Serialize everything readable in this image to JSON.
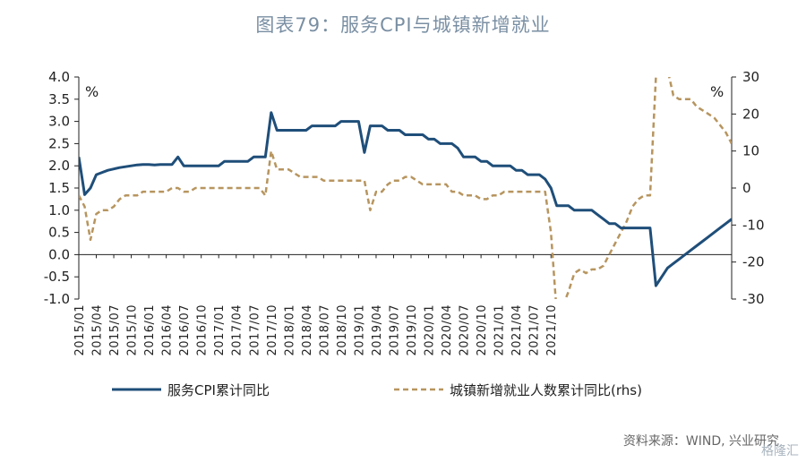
{
  "title": "图表79：服务CPI与城镇新增就业",
  "source": "资料来源：WIND, 兴业研究",
  "watermark": "格隆汇",
  "chart_data": {
    "type": "line",
    "left_unit": "%",
    "right_unit": "%",
    "ylim_left": [
      -1.0,
      4.0
    ],
    "yticks_left": [
      "4.0",
      "3.5",
      "3.0",
      "2.5",
      "2.0",
      "1.5",
      "1.0",
      "0.5",
      "0.0",
      "-0.5",
      "-1.0"
    ],
    "ylim_right": [
      -30,
      30
    ],
    "yticks_right": [
      "30",
      "20",
      "10",
      "0",
      "-10",
      "-20",
      "-30"
    ],
    "x_tick_labels": [
      "2015/01",
      "2015/04",
      "2015/07",
      "2015/10",
      "2016/01",
      "2016/04",
      "2016/07",
      "2016/10",
      "2017/01",
      "2017/04",
      "2017/07",
      "2017/10",
      "2018/01",
      "2018/04",
      "2018/07",
      "2018/10",
      "2019/01",
      "2019/04",
      "2019/07",
      "2019/10",
      "2020/01",
      "2020/04",
      "2020/07",
      "2020/10",
      "2021/01",
      "2021/04",
      "2021/07",
      "2021/10"
    ],
    "series": [
      {
        "name": "服务CPI累计同比",
        "axis": "left",
        "color": "#1f4e79",
        "style": "solid",
        "values": [
          2.2,
          1.35,
          1.5,
          1.8,
          1.85,
          1.9,
          1.93,
          1.96,
          1.98,
          2.0,
          2.02,
          2.03,
          2.03,
          2.02,
          2.03,
          2.03,
          2.03,
          2.2,
          2.0,
          2.0,
          2.0,
          2.0,
          2.0,
          2.0,
          2.0,
          2.1,
          2.1,
          2.1,
          2.1,
          2.1,
          2.2,
          2.2,
          2.2,
          3.2,
          2.8,
          2.8,
          2.8,
          2.8,
          2.8,
          2.8,
          2.9,
          2.9,
          2.9,
          2.9,
          2.9,
          3.0,
          3.0,
          3.0,
          3.0,
          2.3,
          2.9,
          2.9,
          2.9,
          2.8,
          2.8,
          2.8,
          2.7,
          2.7,
          2.7,
          2.7,
          2.6,
          2.6,
          2.5,
          2.5,
          2.5,
          2.4,
          2.2,
          2.2,
          2.2,
          2.1,
          2.1,
          2.0,
          2.0,
          2.0,
          2.0,
          1.9,
          1.9,
          1.8,
          1.8,
          1.8,
          1.7,
          1.5,
          1.1,
          1.1,
          1.1,
          1.0,
          1.0,
          1.0,
          1.0,
          0.9,
          0.8,
          0.7,
          0.7,
          0.6,
          0.6,
          0.6,
          0.6,
          0.6,
          0.6,
          -0.7,
          -0.5,
          -0.3,
          -0.2,
          -0.1,
          0.0,
          0.1,
          0.2,
          0.3,
          0.4,
          0.5,
          0.6,
          0.7,
          0.8
        ]
      },
      {
        "name": "城镇新增就业人数累计同比(rhs)",
        "axis": "right",
        "color": "#b7955f",
        "style": "dashed",
        "values": [
          -2,
          -5,
          -14,
          -7,
          -6,
          -6,
          -5,
          -3,
          -2,
          -2,
          -2,
          -1,
          -1,
          -1,
          -1,
          -1,
          0,
          0,
          -1,
          -1,
          0,
          0,
          0,
          0,
          0,
          0,
          0,
          0,
          0,
          0,
          0,
          0,
          -2,
          10,
          5,
          5,
          5,
          4,
          3,
          3,
          3,
          3,
          2,
          2,
          2,
          2,
          2,
          2,
          2,
          2,
          -6,
          -1,
          -1,
          1,
          2,
          2,
          3,
          3,
          2,
          1,
          1,
          1,
          1,
          1,
          -1,
          -1,
          -2,
          -2,
          -2,
          -3,
          -3,
          -2,
          -2,
          -1,
          -1,
          -1,
          -1,
          -1,
          -1,
          -1,
          -1,
          -12,
          -34,
          -32,
          -28,
          -23,
          -22,
          -23,
          -22,
          -22,
          -21,
          -18,
          -15,
          -12,
          -9,
          -5,
          -3,
          -2,
          -2,
          30,
          38,
          32,
          25,
          24,
          24,
          24,
          22,
          21,
          20,
          19,
          17,
          15,
          12
        ]
      }
    ]
  }
}
